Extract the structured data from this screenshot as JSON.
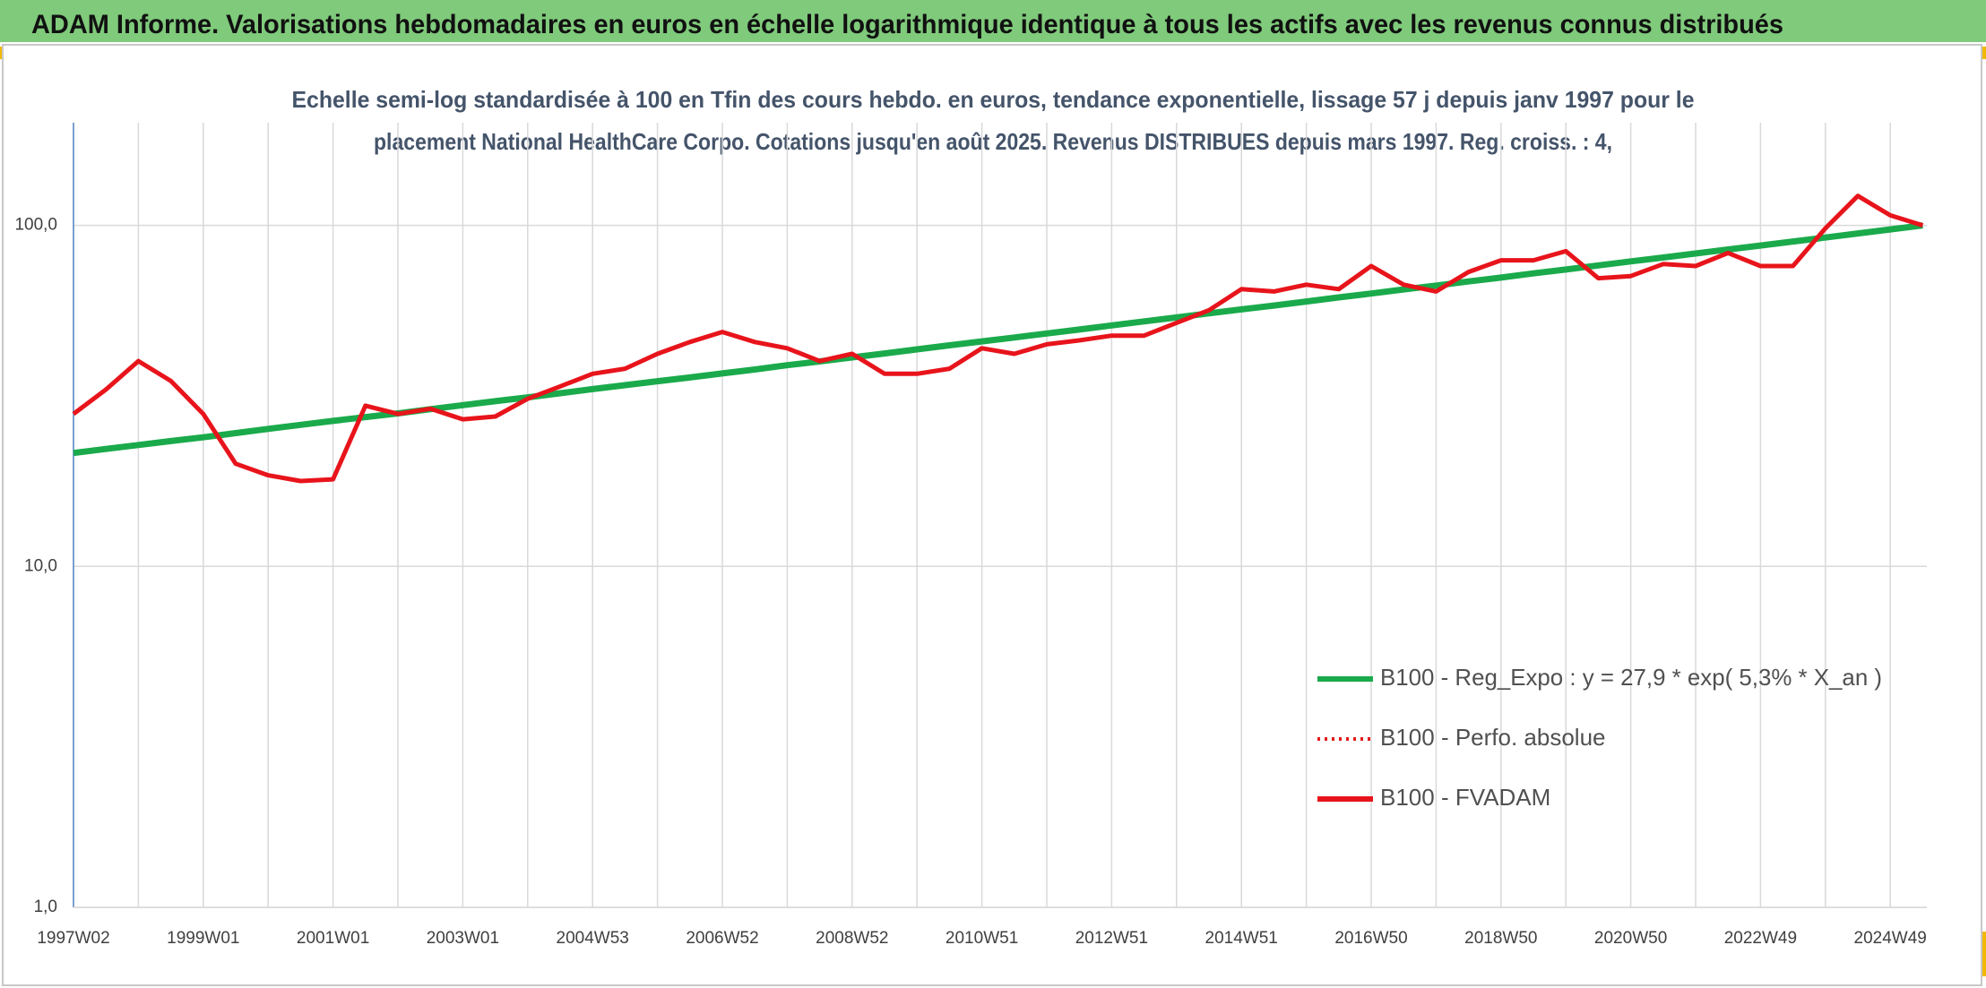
{
  "chart_data": {
    "type": "line",
    "title": "ADAM Informe. Valorisations hebdomadaires en euros en échelle logarithmique identique à tous les actifs avec les revenus connus distribués",
    "subtitle": [
      "Echelle semi-log standardisée à 100 en Tfin des cours hebdo. en euros, tendance exponentielle, lissage 57 j depuis janv 1997 pour le",
      "placement National HealthCare Corpo. Cotations jusqu'en août 2025. Revenus DISTRIBUES depuis mars 1997. Reg. croiss. : 4,"
    ],
    "categories": [
      "1997W02",
      null,
      null,
      null,
      "1999W01",
      null,
      null,
      null,
      "2001W01",
      null,
      null,
      null,
      "2003W01",
      null,
      null,
      null,
      "2004W53",
      null,
      null,
      null,
      "2006W52",
      null,
      null,
      null,
      "2008W52",
      null,
      null,
      null,
      "2010W51",
      null,
      null,
      null,
      "2012W51",
      null,
      null,
      null,
      "2014W51",
      null,
      null,
      null,
      "2016W50",
      null,
      null,
      null,
      "2018W50",
      null,
      null,
      null,
      "2020W50",
      null,
      null,
      null,
      "2022W49",
      null,
      null,
      null,
      "2024W49",
      null
    ],
    "y_log": true,
    "ylim": [
      1,
      200
    ],
    "yticks": [
      {
        "value": 1,
        "label": "1,0"
      },
      {
        "value": 10,
        "label": "10,0"
      },
      {
        "value": 100,
        "label": "100,0"
      }
    ],
    "grid": true,
    "legend_position": "lower right",
    "series": [
      {
        "name": "B100 - Reg_Expo : y = 27,9 * exp( 5,3% *  X_an )",
        "color": "#1aaa4b",
        "style": "solid",
        "values": [
          21.5,
          22.1,
          22.7,
          23.3,
          23.9,
          24.6,
          25.3,
          26.0,
          26.7,
          27.4,
          28.1,
          28.9,
          29.7,
          30.5,
          31.3,
          32.2,
          33.1,
          34.0,
          34.9,
          35.8,
          36.8,
          37.8,
          38.9,
          39.9,
          41.0,
          42.1,
          43.3,
          44.5,
          45.7,
          46.9,
          48.2,
          49.5,
          50.9,
          52.3,
          53.7,
          55.2,
          56.7,
          58.2,
          59.8,
          61.5,
          63.1,
          64.9,
          66.6,
          68.5,
          70.3,
          72.3,
          74.2,
          76.3,
          78.4,
          80.5,
          82.7,
          85.0,
          87.3,
          89.7,
          92.1,
          94.7,
          97.3,
          100.0
        ]
      },
      {
        "name": "B100 - Perfo. absolue",
        "color": "#e31a1c",
        "style": "dotted"
      },
      {
        "name": "B100 - FVADAM",
        "color": "#e8141b",
        "style": "solid",
        "values": [
          28,
          33,
          40,
          35,
          28,
          20,
          18.5,
          17.8,
          18,
          29.6,
          28,
          29,
          27,
          27.5,
          31,
          33.7,
          36.7,
          38,
          42,
          45.5,
          48.7,
          45.5,
          43.6,
          40,
          42,
          36.7,
          36.7,
          38,
          43.6,
          42,
          44.8,
          46,
          47.5,
          47.5,
          51.8,
          56.4,
          65,
          64,
          67,
          65,
          76,
          67,
          64,
          73,
          79,
          79,
          84,
          70,
          71,
          77,
          76,
          83,
          76,
          76,
          98,
          122,
          107,
          100
        ]
      }
    ]
  }
}
